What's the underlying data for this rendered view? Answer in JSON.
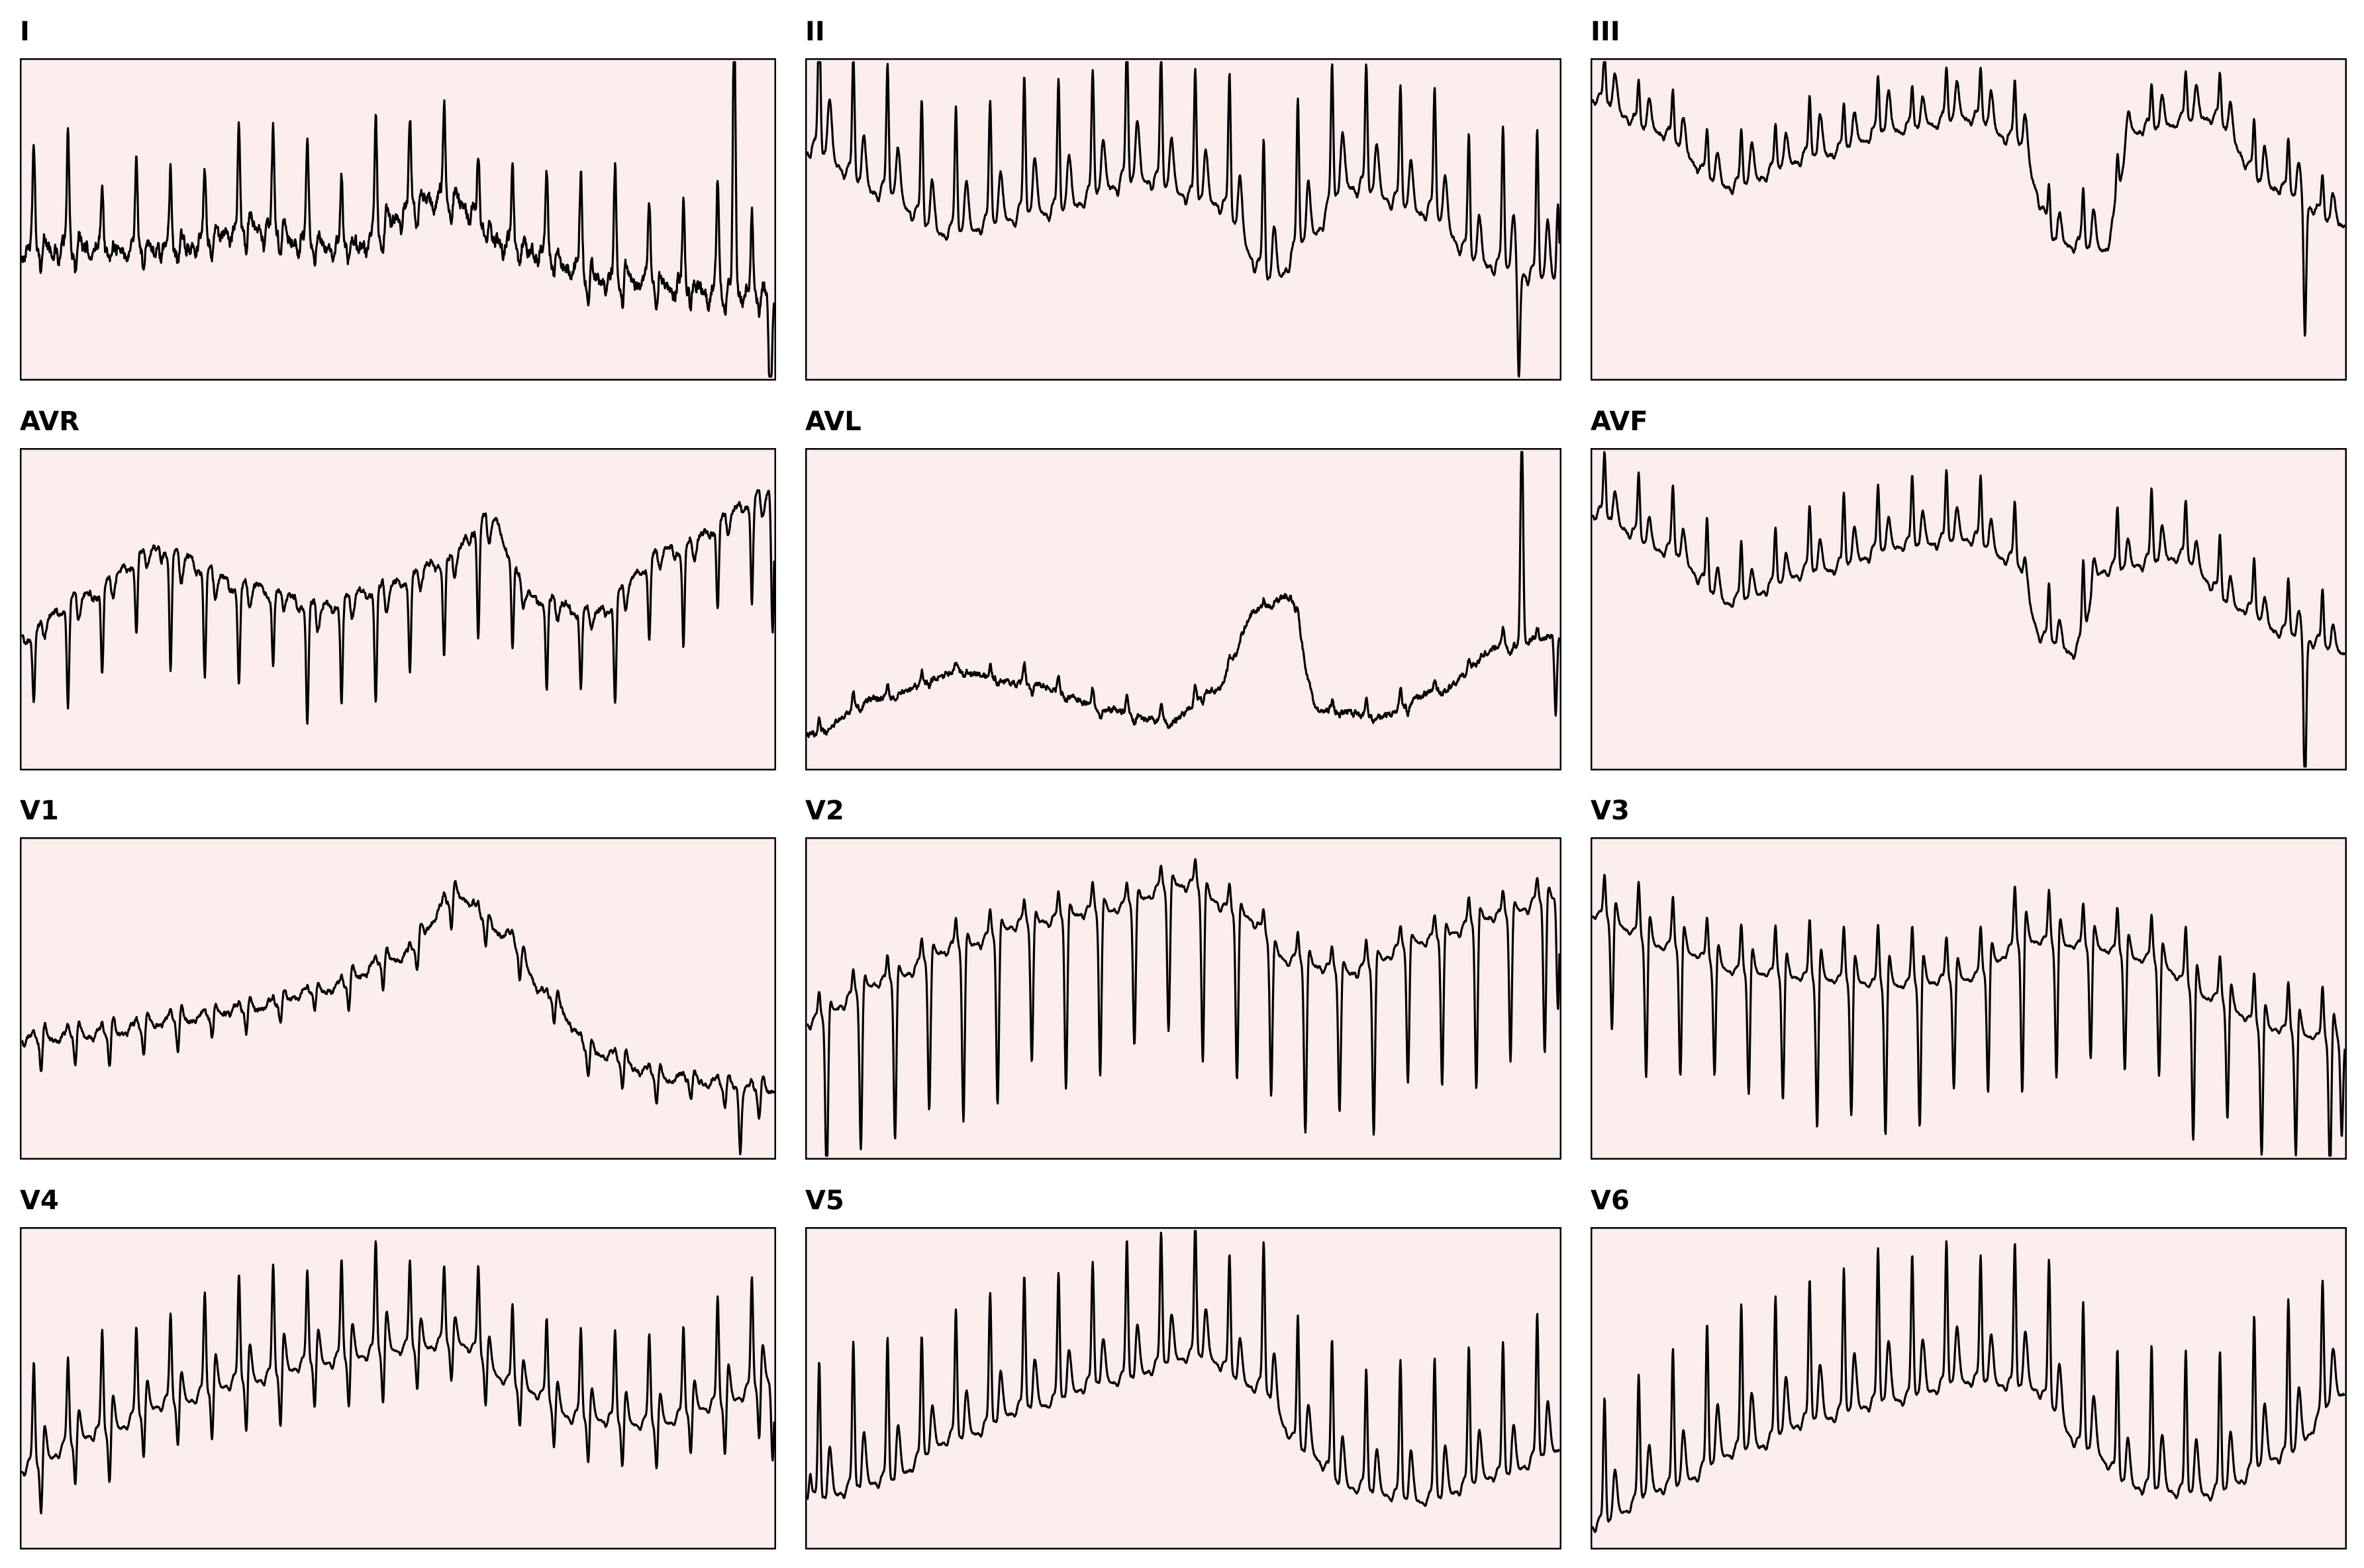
{
  "chart_data": {
    "type": "line",
    "description_units": "Each lead trace is a normalized amplitude (0 = panel bottom, 1 = panel top) sampled uniformly across a 10-second strip; no axes, ticks or units are printed.",
    "grid": false,
    "background_color": "#fdeeee",
    "trace_color": "#000000",
    "y_range": [
      0,
      1
    ],
    "leads": [
      {
        "name": "I",
        "hr": 130,
        "base": [
          [
            0,
            0.4
          ],
          [
            0.2,
            0.4
          ],
          [
            0.3,
            0.46
          ],
          [
            0.42,
            0.4
          ],
          [
            0.56,
            0.56
          ],
          [
            0.66,
            0.4
          ],
          [
            0.78,
            0.3
          ],
          [
            1,
            0.25
          ]
        ],
        "r": 0.3,
        "q": 0.04,
        "s": -0.08,
        "t": 0.05,
        "p": 0.03,
        "noise": 0.08,
        "rv": 0.3,
        "events": [
          [
            0.947,
            0.95
          ],
          [
            0.995,
            -0.45
          ]
        ]
      },
      {
        "name": "II",
        "hr": 130,
        "base": [
          [
            0,
            0.72
          ],
          [
            0.1,
            0.58
          ],
          [
            0.18,
            0.45
          ],
          [
            0.32,
            0.52
          ],
          [
            0.44,
            0.62
          ],
          [
            0.54,
            0.55
          ],
          [
            0.62,
            0.3
          ],
          [
            0.66,
            0.42
          ],
          [
            0.72,
            0.6
          ],
          [
            0.82,
            0.52
          ],
          [
            0.9,
            0.35
          ],
          [
            1,
            0.3
          ]
        ],
        "r": 0.42,
        "q": 0.03,
        "s": -0.04,
        "t": 0.18,
        "p": 0.04,
        "noise": 0.02,
        "rv": 0.12,
        "events": [
          [
            0.946,
            -0.35
          ],
          [
            0.998,
            0.25
          ]
        ]
      },
      {
        "name": "III",
        "hr": 130,
        "base": [
          [
            0,
            0.88
          ],
          [
            0.08,
            0.78
          ],
          [
            0.18,
            0.6
          ],
          [
            0.3,
            0.7
          ],
          [
            0.4,
            0.78
          ],
          [
            0.5,
            0.82
          ],
          [
            0.56,
            0.75
          ],
          [
            0.62,
            0.42
          ],
          [
            0.68,
            0.4
          ],
          [
            0.72,
            0.78
          ],
          [
            0.82,
            0.82
          ],
          [
            0.9,
            0.6
          ],
          [
            1,
            0.48
          ]
        ],
        "r": 0.16,
        "q": 0.02,
        "s": -0.03,
        "t": 0.12,
        "p": 0.03,
        "noise": 0.02,
        "rv": 0.18,
        "events": [
          [
            0.947,
            -0.42
          ]
        ]
      },
      {
        "name": "AVR",
        "hr": 130,
        "base": [
          [
            0,
            0.42
          ],
          [
            0.08,
            0.55
          ],
          [
            0.18,
            0.7
          ],
          [
            0.3,
            0.58
          ],
          [
            0.4,
            0.52
          ],
          [
            0.48,
            0.58
          ],
          [
            0.56,
            0.66
          ],
          [
            0.62,
            0.8
          ],
          [
            0.68,
            0.55
          ],
          [
            0.76,
            0.5
          ],
          [
            0.86,
            0.7
          ],
          [
            1,
            0.88
          ]
        ],
        "r": -0.32,
        "q": 0.03,
        "s": 0.04,
        "t": -0.08,
        "p": -0.03,
        "noise": 0.035,
        "rv": 0.3,
        "events": [
          [
            0.998,
            -0.45
          ]
        ]
      },
      {
        "name": "AVL",
        "hr": 130,
        "base": [
          [
            0,
            0.1
          ],
          [
            0.1,
            0.22
          ],
          [
            0.2,
            0.3
          ],
          [
            0.3,
            0.26
          ],
          [
            0.4,
            0.18
          ],
          [
            0.48,
            0.14
          ],
          [
            0.54,
            0.24
          ],
          [
            0.6,
            0.5
          ],
          [
            0.64,
            0.54
          ],
          [
            0.68,
            0.18
          ],
          [
            0.76,
            0.16
          ],
          [
            0.84,
            0.24
          ],
          [
            0.92,
            0.38
          ],
          [
            1,
            0.42
          ]
        ],
        "r": 0.05,
        "q": 0.0,
        "s": -0.02,
        "t": 0.0,
        "p": 0.0,
        "noise": 0.035,
        "rv": 0.4,
        "events": [
          [
            0.95,
            0.7
          ],
          [
            0.995,
            -0.25
          ]
        ]
      },
      {
        "name": "AVF",
        "hr": 130,
        "base": [
          [
            0,
            0.8
          ],
          [
            0.1,
            0.68
          ],
          [
            0.18,
            0.52
          ],
          [
            0.3,
            0.62
          ],
          [
            0.42,
            0.7
          ],
          [
            0.5,
            0.72
          ],
          [
            0.56,
            0.65
          ],
          [
            0.6,
            0.4
          ],
          [
            0.64,
            0.36
          ],
          [
            0.68,
            0.62
          ],
          [
            0.78,
            0.66
          ],
          [
            0.86,
            0.5
          ],
          [
            0.92,
            0.42
          ],
          [
            1,
            0.36
          ]
        ],
        "r": 0.2,
        "q": 0.02,
        "s": -0.03,
        "t": 0.1,
        "p": 0.03,
        "noise": 0.015,
        "rv": 0.15,
        "events": [
          [
            0.947,
            -0.52
          ]
        ]
      },
      {
        "name": "V1",
        "hr": 130,
        "base": [
          [
            0,
            0.36
          ],
          [
            0.1,
            0.38
          ],
          [
            0.2,
            0.42
          ],
          [
            0.3,
            0.46
          ],
          [
            0.4,
            0.52
          ],
          [
            0.5,
            0.62
          ],
          [
            0.58,
            0.82
          ],
          [
            0.64,
            0.7
          ],
          [
            0.7,
            0.5
          ],
          [
            0.76,
            0.32
          ],
          [
            0.86,
            0.24
          ],
          [
            1,
            0.2
          ]
        ],
        "r": 0.03,
        "q": 0.01,
        "s": -0.1,
        "t": 0.05,
        "p": 0.02,
        "noise": 0.025,
        "rv": 0.3,
        "events": [
          [
            0.955,
            -0.2
          ]
        ]
      },
      {
        "name": "V2",
        "hr": 130,
        "base": [
          [
            0,
            0.42
          ],
          [
            0.1,
            0.55
          ],
          [
            0.2,
            0.66
          ],
          [
            0.3,
            0.74
          ],
          [
            0.4,
            0.78
          ],
          [
            0.5,
            0.86
          ],
          [
            0.58,
            0.76
          ],
          [
            0.64,
            0.62
          ],
          [
            0.72,
            0.58
          ],
          [
            0.82,
            0.68
          ],
          [
            0.92,
            0.76
          ],
          [
            1,
            0.82
          ]
        ],
        "r": 0.08,
        "q": 0.02,
        "s": -0.52,
        "t": 0.05,
        "p": 0.02,
        "noise": 0.015,
        "rv": 0.12,
        "events": [
          [
            0.998,
            -0.35
          ]
        ]
      },
      {
        "name": "V3",
        "hr": 130,
        "base": [
          [
            0,
            0.76
          ],
          [
            0.1,
            0.66
          ],
          [
            0.2,
            0.58
          ],
          [
            0.3,
            0.56
          ],
          [
            0.4,
            0.54
          ],
          [
            0.5,
            0.56
          ],
          [
            0.58,
            0.68
          ],
          [
            0.66,
            0.66
          ],
          [
            0.74,
            0.62
          ],
          [
            0.82,
            0.5
          ],
          [
            0.9,
            0.4
          ],
          [
            1,
            0.36
          ]
        ],
        "r": 0.16,
        "q": 0.01,
        "s": -0.46,
        "t": 0.1,
        "p": 0.02,
        "noise": 0.012,
        "rv": 0.18,
        "events": [
          [
            0.996,
            -0.3
          ]
        ]
      },
      {
        "name": "V4",
        "hr": 130,
        "base": [
          [
            0,
            0.24
          ],
          [
            0.1,
            0.35
          ],
          [
            0.2,
            0.45
          ],
          [
            0.3,
            0.52
          ],
          [
            0.4,
            0.58
          ],
          [
            0.5,
            0.62
          ],
          [
            0.58,
            0.64
          ],
          [
            0.66,
            0.5
          ],
          [
            0.74,
            0.4
          ],
          [
            0.84,
            0.38
          ],
          [
            0.92,
            0.44
          ],
          [
            1,
            0.52
          ]
        ],
        "r": 0.3,
        "q": 0.02,
        "s": -0.2,
        "t": 0.12,
        "p": 0.03,
        "noise": 0.012,
        "rv": 0.18,
        "events": [
          [
            0.998,
            -0.25
          ]
        ]
      },
      {
        "name": "V5",
        "hr": 130,
        "base": [
          [
            0,
            0.14
          ],
          [
            0.1,
            0.2
          ],
          [
            0.2,
            0.34
          ],
          [
            0.3,
            0.44
          ],
          [
            0.4,
            0.52
          ],
          [
            0.52,
            0.6
          ],
          [
            0.6,
            0.5
          ],
          [
            0.66,
            0.3
          ],
          [
            0.72,
            0.18
          ],
          [
            0.82,
            0.14
          ],
          [
            0.92,
            0.22
          ],
          [
            1,
            0.3
          ]
        ],
        "r": 0.42,
        "q": 0.02,
        "s": -0.06,
        "t": 0.16,
        "p": 0.03,
        "noise": 0.012,
        "rv": 0.12,
        "events": [
          [
            0.004,
            0.1
          ]
        ]
      },
      {
        "name": "V6",
        "hr": 130,
        "base": [
          [
            0,
            0.06
          ],
          [
            0.1,
            0.18
          ],
          [
            0.2,
            0.3
          ],
          [
            0.3,
            0.4
          ],
          [
            0.4,
            0.46
          ],
          [
            0.5,
            0.52
          ],
          [
            0.58,
            0.5
          ],
          [
            0.66,
            0.3
          ],
          [
            0.72,
            0.18
          ],
          [
            0.82,
            0.16
          ],
          [
            0.92,
            0.28
          ],
          [
            1,
            0.48
          ]
        ],
        "r": 0.44,
        "q": 0.02,
        "s": -0.05,
        "t": 0.18,
        "p": 0.03,
        "noise": 0.012,
        "rv": 0.12,
        "events": []
      }
    ]
  }
}
